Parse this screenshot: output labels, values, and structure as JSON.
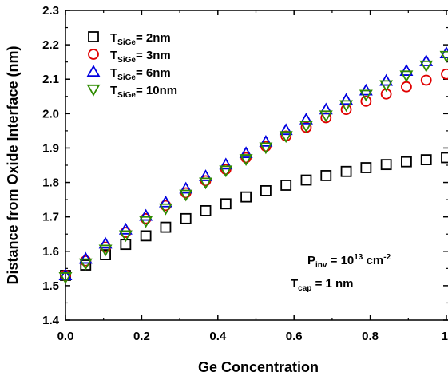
{
  "chart_data": {
    "type": "scatter",
    "xlabel": "Ge Concentration",
    "ylabel": "Distance from Oxide Interface (nm)",
    "xlim": [
      0.0,
      1.0
    ],
    "ylim": [
      1.4,
      2.3
    ],
    "xticks": [
      0.0,
      0.2,
      0.4,
      0.6,
      0.8,
      1.0
    ],
    "xtick_labels": [
      "0.0",
      "0.2",
      "0.4",
      "0.6",
      "0.8",
      "1"
    ],
    "yticks": [
      1.4,
      1.5,
      1.6,
      1.7,
      1.8,
      1.9,
      2.0,
      2.1,
      2.2,
      2.3
    ],
    "ytick_labels": [
      "1.4",
      "1.5",
      "1.6",
      "1.7",
      "1.8",
      "1.9",
      "2.0",
      "2.1",
      "2.2",
      "2.3"
    ],
    "grid": false,
    "legend_position": "top-left",
    "x": [
      0.0,
      0.053,
      0.105,
      0.158,
      0.211,
      0.263,
      0.316,
      0.368,
      0.421,
      0.474,
      0.526,
      0.579,
      0.632,
      0.684,
      0.737,
      0.789,
      0.842,
      0.895,
      0.947,
      1.0
    ],
    "series": [
      {
        "name_main": "T",
        "name_sub": "SiGe",
        "name_rest": "= 2nm",
        "marker": "square",
        "color": "#000000",
        "values": [
          1.53,
          1.56,
          1.59,
          1.62,
          1.645,
          1.67,
          1.695,
          1.718,
          1.738,
          1.758,
          1.776,
          1.792,
          1.807,
          1.82,
          1.832,
          1.843,
          1.852,
          1.86,
          1.866,
          1.872
        ]
      },
      {
        "name_main": "T",
        "name_sub": "SiGe",
        "name_rest": "= 3nm",
        "marker": "circle",
        "color": "#e00000",
        "values": [
          1.53,
          1.572,
          1.612,
          1.655,
          1.695,
          1.733,
          1.77,
          1.805,
          1.838,
          1.872,
          1.905,
          1.935,
          1.96,
          1.988,
          2.012,
          2.036,
          2.057,
          2.078,
          2.097,
          2.115
        ]
      },
      {
        "name_main": "T",
        "name_sub": "SiGe",
        "name_rest": "= 6nm",
        "marker": "triangle-up",
        "color": "#0000e0",
        "values": [
          1.53,
          1.578,
          1.622,
          1.663,
          1.703,
          1.742,
          1.782,
          1.818,
          1.852,
          1.885,
          1.918,
          1.952,
          1.983,
          2.012,
          2.04,
          2.067,
          2.095,
          2.124,
          2.152,
          2.175
        ]
      },
      {
        "name_main": "T",
        "name_sub": "SiGe",
        "name_rest": "= 10nm",
        "marker": "triangle-down",
        "color": "#2e8b00",
        "values": [
          1.525,
          1.565,
          1.605,
          1.647,
          1.688,
          1.725,
          1.765,
          1.8,
          1.835,
          1.868,
          1.902,
          1.935,
          1.965,
          1.995,
          2.025,
          2.055,
          2.083,
          2.111,
          2.14,
          2.168
        ]
      }
    ],
    "annotations": {
      "pinv_main": "P",
      "pinv_sub": "inv",
      "pinv_eq": " = 10",
      "pinv_exp": "13",
      "pinv_unit": " cm",
      "pinv_unit_exp": "-2",
      "tcap_main": "T",
      "tcap_sub": "cap",
      "tcap_rest": " = 1 nm"
    }
  }
}
